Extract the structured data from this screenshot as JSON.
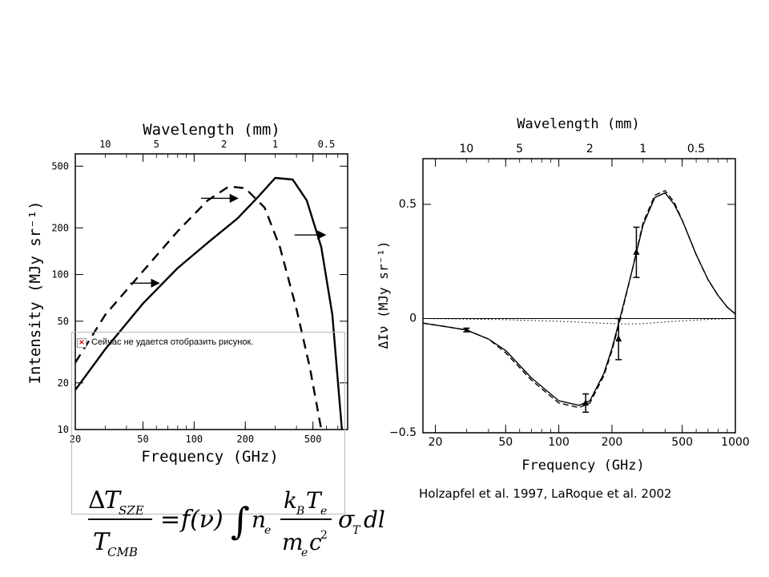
{
  "chart_data": [
    {
      "type": "line",
      "title": "",
      "top_axis_label": "Wavelength (mm)",
      "top_ticks": [
        "10",
        "5",
        "2",
        "1",
        "0.5"
      ],
      "top_tick_values_mm": [
        10,
        5,
        2,
        1,
        0.5
      ],
      "xlabel": "Frequency (GHz)",
      "ylabel": "Intensity (MJy sr⁻¹)",
      "x_scale": "log",
      "y_scale": "log",
      "xlim": [
        20,
        800
      ],
      "ylim": [
        10,
        600
      ],
      "x_ticks": [
        20,
        50,
        100,
        200,
        500
      ],
      "y_ticks": [
        10,
        20,
        50,
        100,
        200,
        500
      ],
      "series": [
        {
          "style": "dashed",
          "x": [
            20,
            30,
            50,
            80,
            120,
            160,
            200,
            260,
            320,
            400,
            480,
            560
          ],
          "y": [
            27,
            55,
            105,
            190,
            300,
            370,
            360,
            270,
            150,
            60,
            25,
            10
          ]
        },
        {
          "style": "solid",
          "x": [
            20,
            30,
            50,
            80,
            120,
            180,
            240,
            300,
            380,
            460,
            560,
            650,
            740
          ],
          "y": [
            18,
            33,
            65,
            110,
            160,
            230,
            320,
            420,
            410,
            300,
            150,
            55,
            10
          ]
        }
      ],
      "annotations": [
        {
          "type": "arrow",
          "x_from": 42,
          "x_to": 62,
          "y": 88
        },
        {
          "type": "arrow",
          "x_from": 110,
          "x_to": 180,
          "y": 310
        },
        {
          "type": "arrow",
          "x_from": 390,
          "x_to": 590,
          "y": 180
        }
      ]
    },
    {
      "type": "line",
      "title": "",
      "top_axis_label": "Wavelength (mm)",
      "top_ticks": [
        "10",
        "5",
        "2",
        "1",
        "0.5"
      ],
      "top_tick_values_mm": [
        10,
        5,
        2,
        1,
        0.5
      ],
      "xlabel": "Frequency (GHz)",
      "ylabel": "ΔIν (MJy sr⁻¹)",
      "x_scale": "log",
      "y_scale": "linear",
      "xlim": [
        17,
        1000
      ],
      "ylim": [
        -0.5,
        0.7
      ],
      "x_ticks": [
        20,
        50,
        100,
        200,
        500,
        1000
      ],
      "y_ticks": [
        -0.5,
        0,
        0.5
      ],
      "y_tick_labels": [
        "−0.5",
        "0",
        "0.5"
      ],
      "series": [
        {
          "style": "solid",
          "x": [
            17,
            25,
            30,
            40,
            50,
            70,
            100,
            130,
            150,
            180,
            200,
            220,
            260,
            300,
            350,
            400,
            450,
            500,
            600,
            700,
            800,
            900,
            1000
          ],
          "y": [
            -0.02,
            -0.04,
            -0.05,
            -0.09,
            -0.14,
            -0.26,
            -0.36,
            -0.38,
            -0.36,
            -0.24,
            -0.13,
            -0.01,
            0.21,
            0.41,
            0.53,
            0.55,
            0.5,
            0.43,
            0.28,
            0.17,
            0.1,
            0.05,
            0.02
          ]
        },
        {
          "style": "dashed",
          "x": [
            17,
            25,
            30,
            40,
            50,
            70,
            100,
            130,
            150,
            180,
            200,
            220,
            260,
            300,
            350,
            400,
            450,
            500,
            600,
            700,
            800,
            900,
            1000
          ],
          "y": [
            -0.02,
            -0.04,
            -0.05,
            -0.09,
            -0.15,
            -0.27,
            -0.37,
            -0.39,
            -0.37,
            -0.25,
            -0.14,
            -0.02,
            0.21,
            0.42,
            0.54,
            0.56,
            0.51,
            0.43,
            0.28,
            0.17,
            0.1,
            0.05,
            0.02
          ]
        },
        {
          "style": "dotted",
          "x": [
            17,
            50,
            100,
            150,
            200,
            250,
            300,
            400,
            500,
            700,
            1000
          ],
          "y": [
            0,
            -0.005,
            -0.012,
            -0.018,
            -0.022,
            -0.024,
            -0.022,
            -0.015,
            -0.01,
            -0.004,
            0
          ]
        }
      ],
      "error_points": [
        {
          "x": 30,
          "y": -0.05,
          "err": 0.008,
          "marker": "none"
        },
        {
          "x": 142,
          "y": -0.37,
          "err": 0.04,
          "marker": "triangle"
        },
        {
          "x": 218,
          "y": -0.09,
          "err": 0.09,
          "marker": "triangle"
        },
        {
          "x": 275,
          "y": 0.29,
          "err": 0.11,
          "marker": "triangle"
        }
      ]
    }
  ],
  "broken_image": {
    "text": "Сейчас не удается отобразить рисунок.",
    "icon": "broken-image-icon"
  },
  "citation": "Holzapfel et al. 1997, LaRoque et al. 2002",
  "formula": {
    "delta": "Δ",
    "T": "T",
    "sub_sze": "SZE",
    "sub_cmb": "CMB",
    "equals": "=",
    "f_nu": "f(ν)",
    "integral": "∫",
    "n": "n",
    "e": "e",
    "k": "k",
    "B": "B",
    "m": "m",
    "c": "c",
    "two": "2",
    "sigma": "σ",
    "dl": "dl"
  }
}
